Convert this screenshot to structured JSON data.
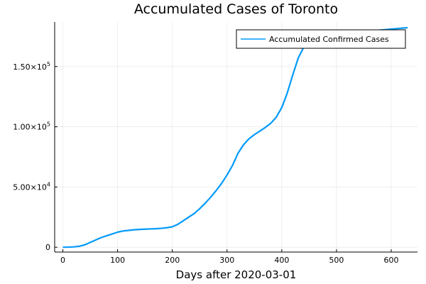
{
  "chart_data": {
    "type": "line",
    "title": "Accumulated Cases of Toronto",
    "xlabel": "Days after 2020-03-01",
    "ylabel": "",
    "xlim": [
      -15,
      648
    ],
    "ylim": [
      -4000,
      187000
    ],
    "x_ticks": [
      {
        "value": 0,
        "label": "0"
      },
      {
        "value": 100,
        "label": "100"
      },
      {
        "value": 200,
        "label": "200"
      },
      {
        "value": 300,
        "label": "300"
      },
      {
        "value": 400,
        "label": "400"
      },
      {
        "value": 500,
        "label": "500"
      },
      {
        "value": 600,
        "label": "600"
      }
    ],
    "y_ticks": [
      {
        "value": 0,
        "label": "0",
        "exponent": ""
      },
      {
        "value": 50000,
        "label": "5.00×10",
        "exponent": "4"
      },
      {
        "value": 100000,
        "label": "1.00×10",
        "exponent": "5"
      },
      {
        "value": 150000,
        "label": "1.50×10",
        "exponent": "5"
      }
    ],
    "grid": true,
    "legend_position": "top-right",
    "series": [
      {
        "name": "Accumulated Confirmed Cases",
        "color": "#009AFA",
        "x": [
          0,
          10,
          20,
          30,
          40,
          50,
          60,
          70,
          80,
          90,
          100,
          110,
          120,
          130,
          140,
          150,
          160,
          170,
          180,
          190,
          200,
          210,
          220,
          230,
          240,
          250,
          260,
          270,
          280,
          290,
          300,
          310,
          320,
          330,
          340,
          350,
          360,
          370,
          380,
          390,
          400,
          410,
          420,
          430,
          440,
          450,
          460,
          470,
          480,
          490,
          500,
          510,
          520,
          530,
          540,
          550,
          560,
          570,
          580,
          590,
          600,
          610,
          620,
          630
        ],
        "y": [
          0,
          100,
          300,
          800,
          2000,
          4000,
          6000,
          8000,
          9500,
          11000,
          12500,
          13500,
          14000,
          14500,
          14800,
          15000,
          15200,
          15400,
          15700,
          16200,
          17000,
          19000,
          22000,
          25000,
          28000,
          32000,
          36500,
          41500,
          47000,
          53000,
          60000,
          68000,
          78000,
          85000,
          90000,
          93500,
          96500,
          99500,
          103000,
          108000,
          116000,
          128000,
          143000,
          157000,
          166000,
          170000,
          171500,
          172500,
          173500,
          174500,
          175500,
          176300,
          177000,
          177700,
          178300,
          178900,
          179400,
          179900,
          180300,
          180700,
          181100,
          181500,
          181900,
          182300
        ]
      }
    ]
  }
}
